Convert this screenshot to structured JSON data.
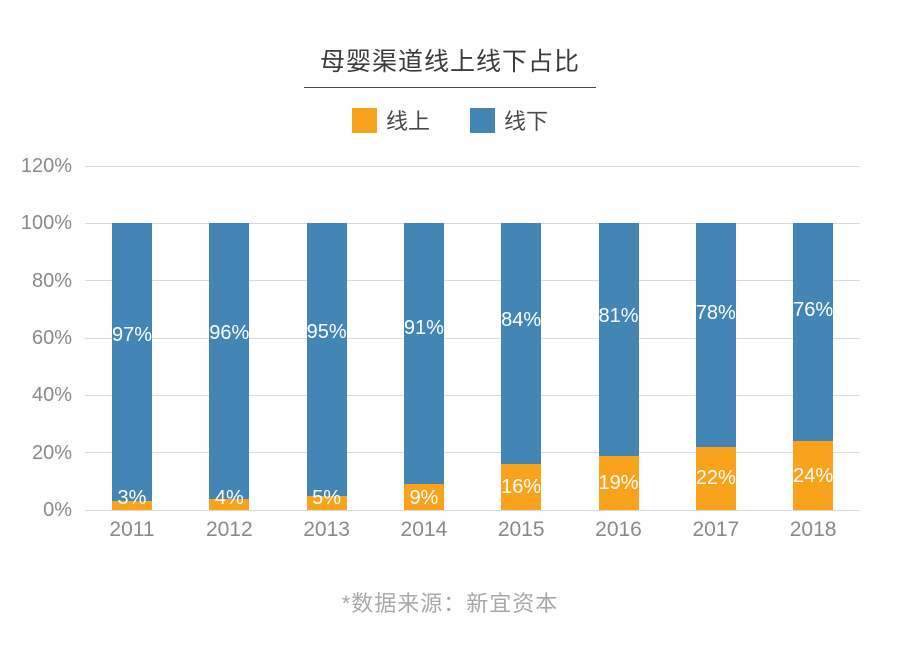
{
  "title": "母婴渠道线上线下占比",
  "footnote": "*数据来源：新宜资本",
  "colors": {
    "online": "#F9A21C",
    "offline": "#4386B6",
    "gridline": "#DADADA",
    "axis_text": "#8A8A8A",
    "title_text": "#3C3C3C",
    "footnote_text": "#A8A8A8",
    "bar_label": "#FFFFFF"
  },
  "legend": {
    "items": [
      {
        "label": "线上",
        "color": "#F9A21C"
      },
      {
        "label": "线下",
        "color": "#4386B6"
      }
    ]
  },
  "chart_data": {
    "type": "bar",
    "stacked": true,
    "title": "母婴渠道线上线下占比",
    "categories": [
      "2011",
      "2012",
      "2013",
      "2014",
      "2015",
      "2016",
      "2017",
      "2018"
    ],
    "series": [
      {
        "name": "线上",
        "color": "#F9A21C",
        "values": [
          3,
          4,
          5,
          9,
          16,
          19,
          22,
          24
        ]
      },
      {
        "name": "线下",
        "color": "#4386B6",
        "values": [
          97,
          96,
          95,
          91,
          84,
          81,
          78,
          76
        ]
      }
    ],
    "label_format": "{v}%",
    "ylim": [
      0,
      120
    ],
    "yticks": [
      0,
      20,
      40,
      60,
      80,
      100,
      120
    ],
    "ytick_labels": [
      "0%",
      "20%",
      "40%",
      "60%",
      "80%",
      "100%",
      "120%"
    ],
    "grid": true,
    "legend_position": "top-center",
    "source_note": "*数据来源：新宜资本"
  }
}
